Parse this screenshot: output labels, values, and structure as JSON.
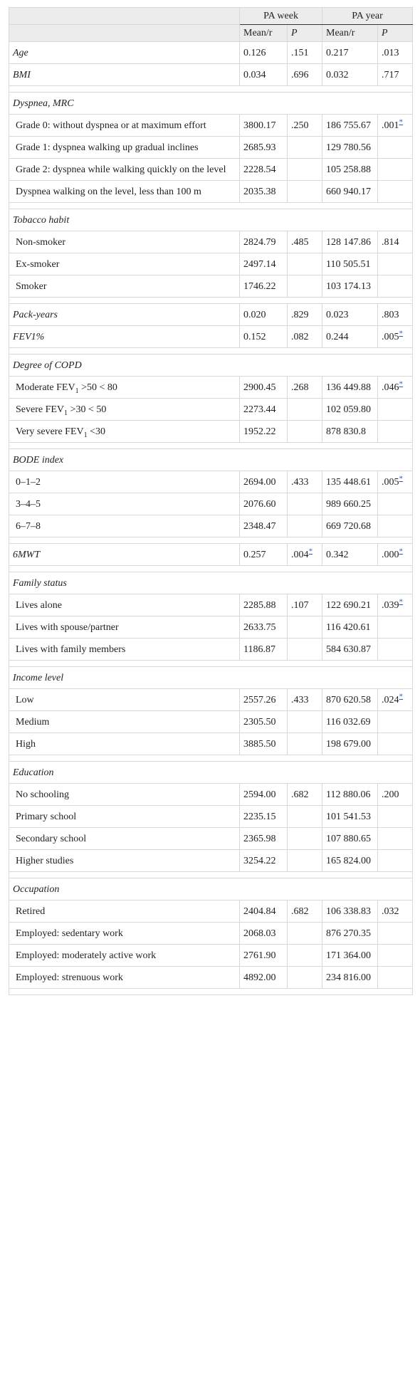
{
  "table": {
    "header": {
      "pa_week": "PA week",
      "pa_year": "PA year",
      "mean": "Mean/r",
      "p": "P"
    },
    "groups": [
      {
        "rows": [
          {
            "label": "Age",
            "week_mean": "0.126",
            "week_p": ".151",
            "year_mean": "0.217",
            "year_p": ".013"
          },
          {
            "label": "BMI",
            "week_mean": "0.034",
            "week_p": ".696",
            "year_mean": "0.032",
            "year_p": ".717"
          }
        ]
      },
      {
        "title": "Dyspnea, MRC",
        "rows": [
          {
            "label": "Grade 0: without dyspnea or at maximum effort",
            "week_mean": "3800.17",
            "week_p": ".250",
            "year_mean": "186 755.67",
            "year_p": ".001",
            "year_p_note": "*"
          },
          {
            "label": "Grade 1: dyspnea walking up gradual inclines",
            "week_mean": "2685.93",
            "year_mean": "129 780.56"
          },
          {
            "label": "Grade 2: dyspnea while walking quickly on the level",
            "week_mean": "2228.54",
            "year_mean": "105 258.88"
          },
          {
            "label": "Dyspnea walking on the level, less than 100 m",
            "week_mean": "2035.38",
            "year_mean": "660 940.17"
          }
        ]
      },
      {
        "title": "Tobacco habit",
        "rows": [
          {
            "label": "Non-smoker",
            "week_mean": "2824.79",
            "week_p": ".485",
            "year_mean": "128 147.86",
            "year_p": ".814"
          },
          {
            "label": "Ex-smoker",
            "week_mean": "2497.14",
            "year_mean": "110 505.51"
          },
          {
            "label": "Smoker",
            "week_mean": "1746.22",
            "year_mean": "103 174.13"
          }
        ]
      },
      {
        "rows": [
          {
            "label": "Pack-years",
            "week_mean": "0.020",
            "week_p": ".829",
            "year_mean": "0.023",
            "year_p": ".803"
          },
          {
            "label": "FEV1%",
            "week_mean": "0.152",
            "week_p": ".082",
            "year_mean": "0.244",
            "year_p": ".005",
            "year_p_note": "*"
          }
        ]
      },
      {
        "title": "Degree of COPD",
        "rows": [
          {
            "label": "Moderate FEV",
            "sub": "1",
            "label_rest": " >50 < 80",
            "week_mean": "2900.45",
            "week_p": ".268",
            "year_mean": "136 449.88",
            "year_p": ".046",
            "year_p_note": "*"
          },
          {
            "label": "Severe FEV",
            "sub": "1",
            "label_rest": " >30 < 50",
            "week_mean": "2273.44",
            "year_mean": "102 059.80"
          },
          {
            "label": "Very severe FEV",
            "sub": "1",
            "label_rest": " <30",
            "week_mean": "1952.22",
            "year_mean": "878 830.8"
          }
        ]
      },
      {
        "title": "BODE index",
        "rows": [
          {
            "label": "0–1–2",
            "week_mean": "2694.00",
            "week_p": ".433",
            "year_mean": "135 448.61",
            "year_p": ".005",
            "year_p_note": "*"
          },
          {
            "label": "3–4–5",
            "week_mean": "2076.60",
            "year_mean": "989 660.25"
          },
          {
            "label": "6–7–8",
            "week_mean": "2348.47",
            "year_mean": "669 720.68"
          }
        ]
      },
      {
        "rows": [
          {
            "label": "6MWT",
            "week_mean": "0.257",
            "week_p": ".004",
            "week_p_note": "*",
            "year_mean": "0.342",
            "year_p": ".000",
            "year_p_note": "*"
          }
        ]
      },
      {
        "title": "Family status",
        "rows": [
          {
            "label": "Lives alone",
            "week_mean": "2285.88",
            "week_p": ".107",
            "year_mean": "122 690.21",
            "year_p": ".039",
            "year_p_note": "*"
          },
          {
            "label": "Lives with spouse/partner",
            "week_mean": "2633.75",
            "year_mean": "116 420.61"
          },
          {
            "label": "Lives with family members",
            "week_mean": "1186.87",
            "year_mean": "584 630.87"
          }
        ]
      },
      {
        "title": "Income level",
        "rows": [
          {
            "label": "Low",
            "week_mean": "2557.26",
            "week_p": ".433",
            "year_mean": "870 620.58",
            "year_p": ".024",
            "year_p_note": "*"
          },
          {
            "label": "Medium",
            "week_mean": "2305.50",
            "year_mean": "116 032.69"
          },
          {
            "label": "High",
            "week_mean": "3885.50",
            "year_mean": "198 679.00"
          }
        ]
      },
      {
        "title": "Education",
        "rows": [
          {
            "label": "No schooling",
            "week_mean": "2594.00",
            "week_p": ".682",
            "year_mean": "112 880.06",
            "year_p": ".200"
          },
          {
            "label": "Primary school",
            "week_mean": "2235.15",
            "year_mean": "101 541.53"
          },
          {
            "label": "Secondary school",
            "week_mean": "2365.98",
            "year_mean": "107 880.65"
          },
          {
            "label": "Higher studies",
            "week_mean": "3254.22",
            "year_mean": "165 824.00"
          }
        ]
      },
      {
        "title": "Occupation",
        "rows": [
          {
            "label": "Retired",
            "week_mean": "2404.84",
            "week_p": ".682",
            "year_mean": "106 338.83",
            "year_p": ".032"
          },
          {
            "label": "Employed: sedentary work",
            "week_mean": "2068.03",
            "year_mean": "876 270.35"
          },
          {
            "label": "Employed: moderately active work",
            "week_mean": "2761.90",
            "year_mean": "171 364.00"
          },
          {
            "label": "Employed: strenuous work",
            "week_mean": "4892.00",
            "year_mean": "234 816.00"
          }
        ]
      }
    ]
  }
}
